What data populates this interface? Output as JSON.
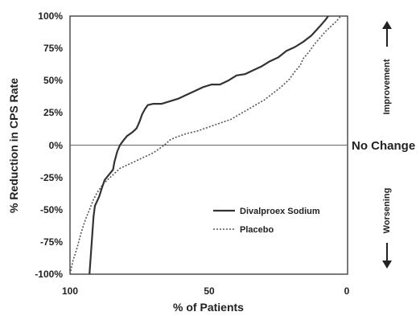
{
  "chart_data": {
    "type": "line",
    "xlabel": "% of Patients",
    "ylabel": "% Reduction in CPS Rate",
    "xlim": [
      100,
      0
    ],
    "ylim": [
      -100,
      100
    ],
    "x_ticks": [
      "100",
      "50",
      "0"
    ],
    "y_ticks": [
      "100%",
      "75%",
      "50%",
      "25%",
      "0%",
      "-25%",
      "-50%",
      "-75%",
      "-100%"
    ],
    "reference_line": {
      "y": 0,
      "label": "No Change"
    },
    "annotations": {
      "top": "Improvement",
      "bottom": "Worsening"
    },
    "legend_position": "lower-right inside plot",
    "series": [
      {
        "name": "Divalproex Sodium",
        "style": "solid",
        "color": "#333333",
        "points": [
          [
            93,
            -100
          ],
          [
            92.5,
            -85
          ],
          [
            92,
            -70
          ],
          [
            91.5,
            -55
          ],
          [
            91,
            -47
          ],
          [
            89.5,
            -40
          ],
          [
            88.5,
            -33
          ],
          [
            87.5,
            -27
          ],
          [
            86,
            -23
          ],
          [
            84.5,
            -19
          ],
          [
            84,
            -13
          ],
          [
            83,
            -5
          ],
          [
            82,
            0
          ],
          [
            81,
            3
          ],
          [
            79.5,
            7
          ],
          [
            77.5,
            10
          ],
          [
            76,
            13
          ],
          [
            75,
            18
          ],
          [
            74,
            24
          ],
          [
            73,
            28
          ],
          [
            72,
            31
          ],
          [
            70,
            32
          ],
          [
            67,
            32
          ],
          [
            64,
            34
          ],
          [
            61,
            36
          ],
          [
            58,
            39
          ],
          [
            55,
            42
          ],
          [
            52,
            45
          ],
          [
            49,
            47
          ],
          [
            46,
            47
          ],
          [
            43,
            50
          ],
          [
            40,
            54
          ],
          [
            37,
            55
          ],
          [
            34,
            58
          ],
          [
            31,
            61
          ],
          [
            28,
            65
          ],
          [
            25,
            68
          ],
          [
            22,
            73
          ],
          [
            19,
            76
          ],
          [
            16,
            80
          ],
          [
            13,
            85
          ],
          [
            10,
            92
          ],
          [
            8,
            97
          ],
          [
            7,
            100
          ]
        ]
      },
      {
        "name": "Placebo",
        "style": "dotted",
        "color": "#555555",
        "points": [
          [
            100,
            -100
          ],
          [
            99,
            -90
          ],
          [
            97.5,
            -80
          ],
          [
            96,
            -68
          ],
          [
            94.5,
            -58
          ],
          [
            93,
            -50
          ],
          [
            91.5,
            -42
          ],
          [
            90,
            -36
          ],
          [
            88,
            -30
          ],
          [
            86,
            -26
          ],
          [
            84,
            -22
          ],
          [
            82,
            -18
          ],
          [
            80,
            -16
          ],
          [
            78,
            -14
          ],
          [
            76,
            -12
          ],
          [
            74,
            -10
          ],
          [
            72,
            -8
          ],
          [
            70,
            -6
          ],
          [
            68,
            -3
          ],
          [
            66,
            0
          ],
          [
            64,
            4
          ],
          [
            62,
            6
          ],
          [
            58,
            9
          ],
          [
            54,
            11
          ],
          [
            50,
            14
          ],
          [
            46,
            17
          ],
          [
            42,
            20
          ],
          [
            38,
            25
          ],
          [
            34,
            30
          ],
          [
            30,
            35
          ],
          [
            27,
            40
          ],
          [
            24,
            45
          ],
          [
            21,
            51
          ],
          [
            19,
            57
          ],
          [
            17,
            62
          ],
          [
            16,
            67
          ],
          [
            14,
            72
          ],
          [
            12,
            78
          ],
          [
            10,
            83
          ],
          [
            8,
            88
          ],
          [
            6,
            92
          ],
          [
            4,
            96
          ],
          [
            2.5,
            100
          ]
        ]
      }
    ]
  }
}
